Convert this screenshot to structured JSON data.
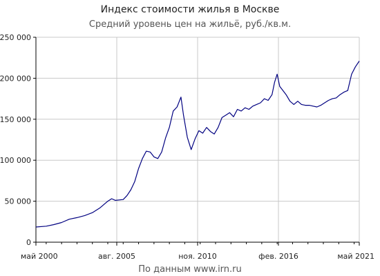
{
  "header": {
    "title": "Индекс стоимости жилья в Москве",
    "subtitle": "Средний уровень цен на жильё, руб./кв.м."
  },
  "footer": {
    "source": "По данным www.irn.ru"
  },
  "colors": {
    "line": "#000080",
    "grid": "#c8c8c8",
    "axis": "#000000"
  },
  "chart_data": {
    "type": "line",
    "title": "Индекс стоимости жилья в Москве",
    "subtitle": "Средний уровень цен на жильё, руб./кв.м.",
    "xlabel": "",
    "ylabel": "",
    "grid": true,
    "xlim": [
      "2000-05",
      "2021-05"
    ],
    "ylim": [
      0,
      250000
    ],
    "y_ticks": [
      0,
      50000,
      100000,
      150000,
      200000,
      250000
    ],
    "y_tick_labels": [
      "0",
      "50 000",
      "100 000",
      "150 000",
      "200 000",
      "250 000"
    ],
    "x_ticks": [
      "2000-05",
      "2005-08",
      "2010-11",
      "2016-02",
      "2021-05"
    ],
    "x_tick_labels": [
      "май 2000",
      "авг. 2005",
      "ноя. 2010",
      "фев. 2016",
      "май 2021"
    ],
    "series": [
      {
        "values": [
          [
            "2000-05",
            18500
          ],
          [
            "2001-01",
            19500
          ],
          [
            "2001-07",
            21500
          ],
          [
            "2002-01",
            24000
          ],
          [
            "2002-07",
            28000
          ],
          [
            "2003-01",
            30000
          ],
          [
            "2003-07",
            32500
          ],
          [
            "2004-01",
            36000
          ],
          [
            "2004-07",
            42000
          ],
          [
            "2005-01",
            50000
          ],
          [
            "2005-04",
            53000
          ],
          [
            "2005-07",
            51000
          ],
          [
            "2006-01",
            52000
          ],
          [
            "2006-04",
            57000
          ],
          [
            "2006-07",
            64000
          ],
          [
            "2006-10",
            74000
          ],
          [
            "2007-01",
            90000
          ],
          [
            "2007-04",
            102000
          ],
          [
            "2007-07",
            111000
          ],
          [
            "2007-10",
            110000
          ],
          [
            "2008-01",
            104000
          ],
          [
            "2008-04",
            102000
          ],
          [
            "2008-07",
            110000
          ],
          [
            "2008-10",
            127000
          ],
          [
            "2009-01",
            140000
          ],
          [
            "2009-04",
            160000
          ],
          [
            "2009-07",
            165000
          ],
          [
            "2009-10",
            177000
          ],
          [
            "2009-12",
            155000
          ],
          [
            "2010-03",
            128000
          ],
          [
            "2010-06",
            113000
          ],
          [
            "2010-09",
            126000
          ],
          [
            "2010-12",
            136000
          ],
          [
            "2011-03",
            133000
          ],
          [
            "2011-06",
            140000
          ],
          [
            "2011-09",
            135000
          ],
          [
            "2011-12",
            132000
          ],
          [
            "2012-03",
            140000
          ],
          [
            "2012-06",
            152000
          ],
          [
            "2012-09",
            155000
          ],
          [
            "2012-12",
            158000
          ],
          [
            "2013-03",
            153000
          ],
          [
            "2013-06",
            162000
          ],
          [
            "2013-09",
            160000
          ],
          [
            "2013-12",
            164000
          ],
          [
            "2014-03",
            162000
          ],
          [
            "2014-06",
            166000
          ],
          [
            "2014-09",
            168000
          ],
          [
            "2014-12",
            170000
          ],
          [
            "2015-03",
            175000
          ],
          [
            "2015-06",
            173000
          ],
          [
            "2015-09",
            180000
          ],
          [
            "2015-11",
            195000
          ],
          [
            "2016-01",
            205000
          ],
          [
            "2016-03",
            190000
          ],
          [
            "2016-05",
            186000
          ],
          [
            "2016-08",
            180000
          ],
          [
            "2016-11",
            172000
          ],
          [
            "2017-02",
            168000
          ],
          [
            "2017-05",
            172000
          ],
          [
            "2017-08",
            168000
          ],
          [
            "2017-11",
            167000
          ],
          [
            "2018-02",
            167000
          ],
          [
            "2018-05",
            166000
          ],
          [
            "2018-08",
            165000
          ],
          [
            "2018-11",
            167000
          ],
          [
            "2019-02",
            170000
          ],
          [
            "2019-05",
            173000
          ],
          [
            "2019-08",
            175000
          ],
          [
            "2019-11",
            176000
          ],
          [
            "2020-02",
            180000
          ],
          [
            "2020-05",
            183000
          ],
          [
            "2020-08",
            185000
          ],
          [
            "2020-11",
            205000
          ],
          [
            "2021-02",
            214000
          ],
          [
            "2021-05",
            221000
          ]
        ]
      }
    ]
  }
}
